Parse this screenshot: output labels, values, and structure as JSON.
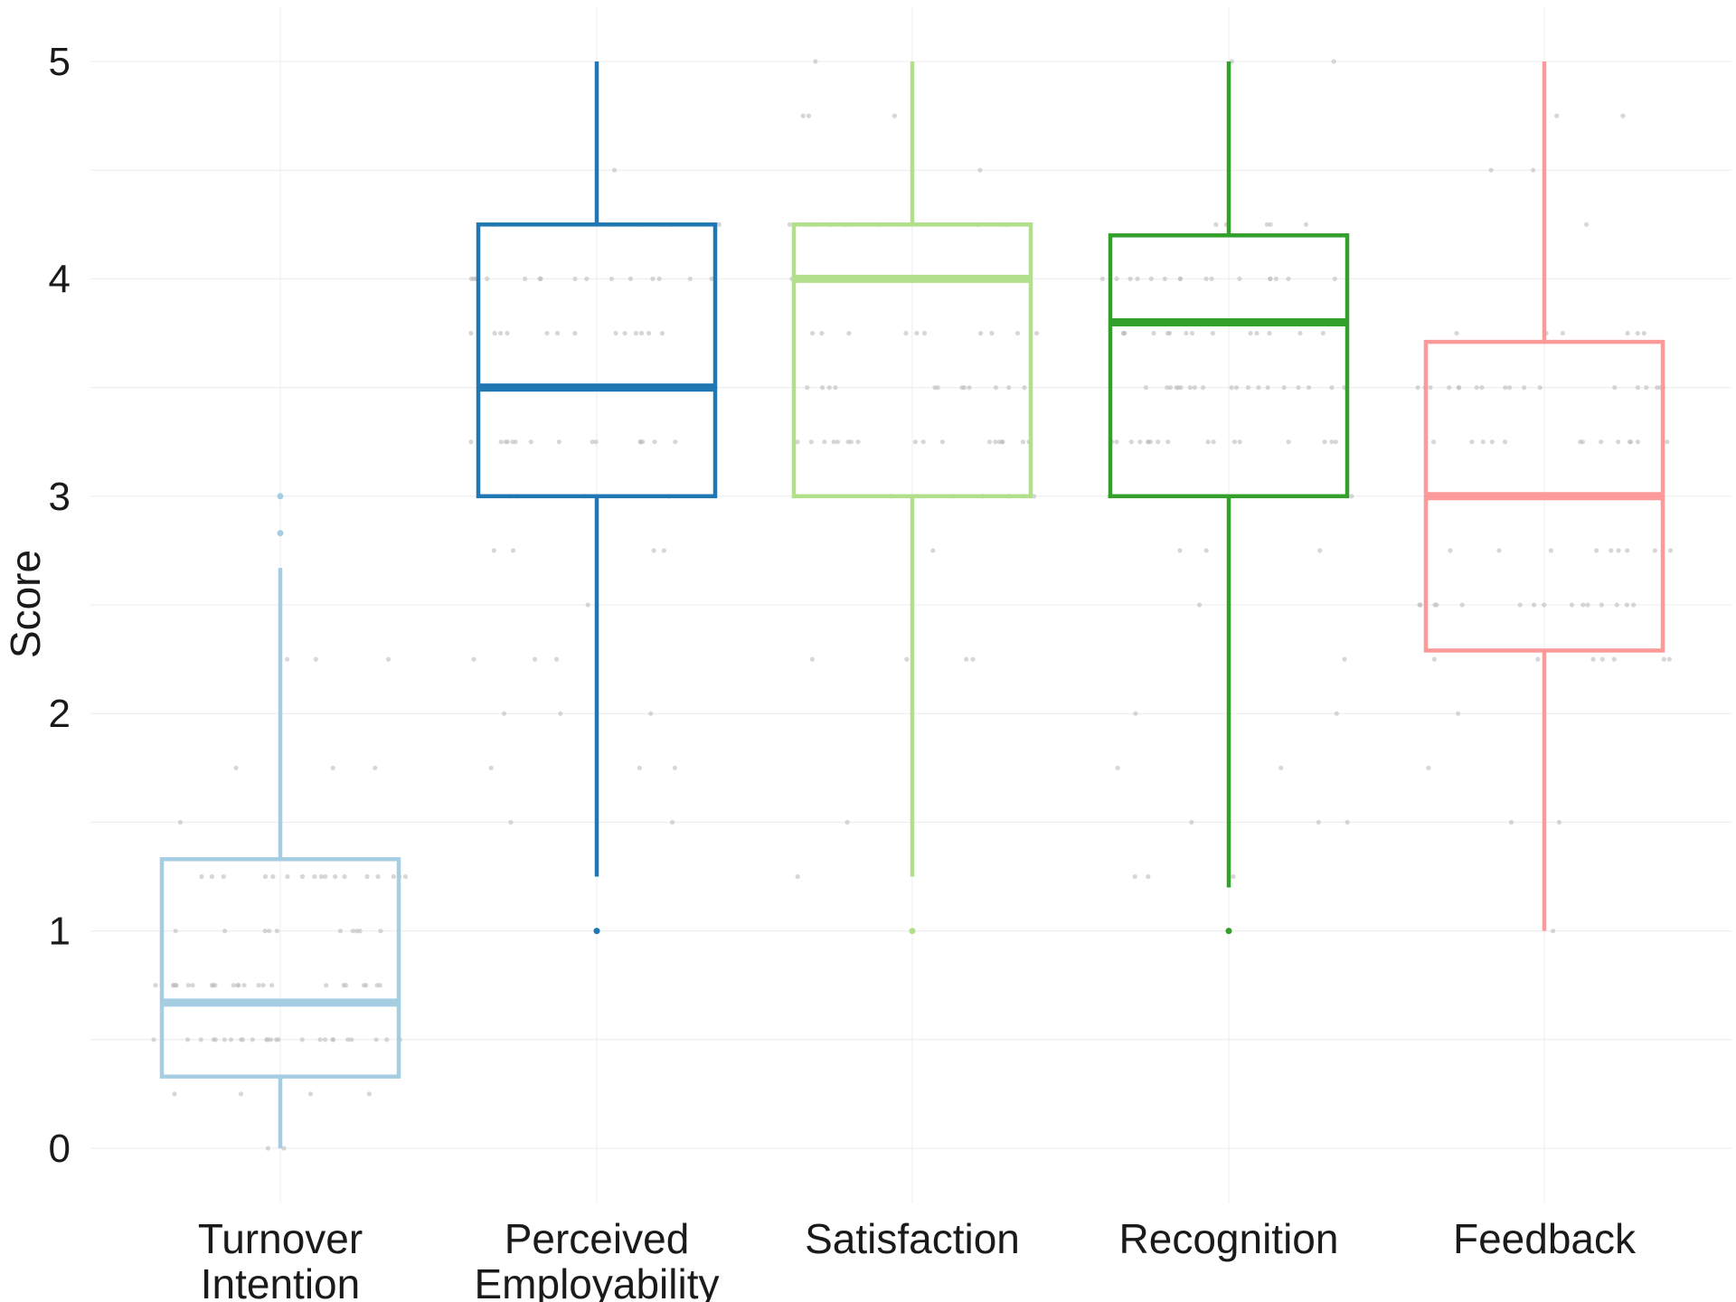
{
  "chart_data": {
    "type": "boxplot",
    "title": "",
    "xlabel": "",
    "ylabel": "Score",
    "ylim": [
      -0.25,
      5.2
    ],
    "yticks": [
      0,
      1,
      2,
      3,
      4,
      5
    ],
    "grid": true,
    "legend": "none",
    "jitter_color": "#bdbdbd",
    "series": [
      {
        "label_lines": [
          "Turnover",
          "Intention"
        ],
        "color": "#a6cee3",
        "min": 0.0,
        "q1": 0.33,
        "median": 0.67,
        "q3": 1.33,
        "max": 2.67,
        "outliers": [
          2.83,
          3.0
        ]
      },
      {
        "label_lines": [
          "Perceived",
          "Employability"
        ],
        "color": "#1f78b4",
        "min": 1.25,
        "q1": 3.0,
        "median": 3.5,
        "q3": 4.25,
        "max": 5.0,
        "outliers": [
          1.0
        ]
      },
      {
        "label_lines": [
          "Satisfaction"
        ],
        "color": "#b2df8a",
        "min": 1.25,
        "q1": 3.0,
        "median": 4.0,
        "q3": 4.25,
        "max": 5.0,
        "outliers": [
          1.0
        ]
      },
      {
        "label_lines": [
          "Recognition"
        ],
        "color": "#33a02c",
        "min": 1.2,
        "q1": 3.0,
        "median": 3.8,
        "q3": 4.2,
        "max": 5.0,
        "outliers": [
          1.0
        ]
      },
      {
        "label_lines": [
          "Feedback"
        ],
        "color": "#fb9a99",
        "min": 1.0,
        "q1": 2.29,
        "median": 3.0,
        "q3": 3.71,
        "max": 5.0,
        "outliers": []
      }
    ]
  }
}
